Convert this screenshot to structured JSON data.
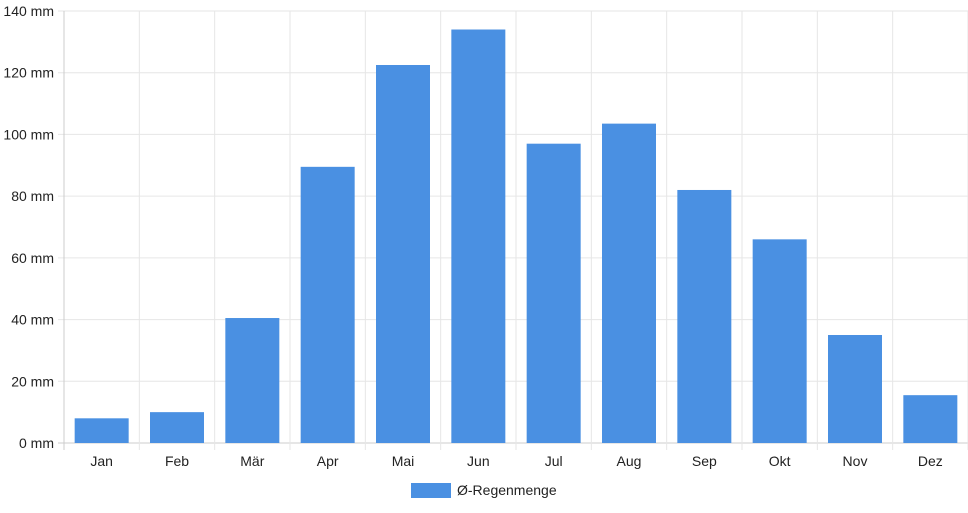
{
  "chart_data": {
    "type": "bar",
    "categories": [
      "Jan",
      "Feb",
      "Mär",
      "Apr",
      "Mai",
      "Jun",
      "Jul",
      "Aug",
      "Sep",
      "Okt",
      "Nov",
      "Dez"
    ],
    "series": [
      {
        "name": "Ø-Regenmenge",
        "values": [
          8,
          10,
          40.5,
          89.5,
          122.5,
          134,
          97,
          103.5,
          82,
          66,
          35,
          15.5
        ]
      }
    ],
    "y_ticks": [
      "0 mm",
      "20 mm",
      "40 mm",
      "60 mm",
      "80 mm",
      "100 mm",
      "120 mm",
      "140 mm"
    ],
    "ylim": [
      0,
      140
    ],
    "grid": true,
    "legend": "bottom-center",
    "colors": {
      "bar": "#4a90e2",
      "grid": "#e6e6e6",
      "axis": "#cccccc"
    }
  }
}
